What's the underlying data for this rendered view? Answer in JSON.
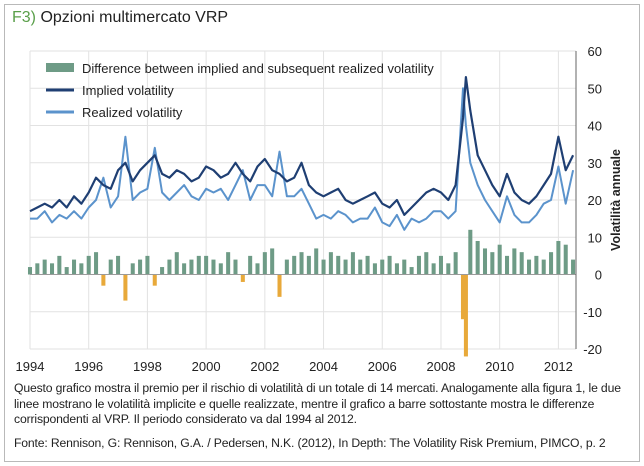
{
  "figure": {
    "label": "F3)",
    "title": "Opzioni multimercato VRP",
    "caption": "Questo grafico mostra il premio per il rischio di volatilità di un totale di 14 mercati. Analogamente alla figura 1, le due linee mostrano le volatilità implicite e quelle realizzate, mentre il grafico a barre sottostante mostra le differenze corrispondenti al VRP. Il periodo considerato va dal 1994 al 2012.",
    "source": "Fonte: Rennison, G: Rennison, G.A. / Pedersen, N.K. (2012), In Depth: The Volatility Risk Premium, PIMCO, p. 2"
  },
  "colors": {
    "implied": "#1f3f73",
    "realized": "#5b93cc",
    "diff_positive": "#6e9b86",
    "diff_negative": "#e8a93a",
    "grid": "#e2e2e2",
    "axis": "#222222"
  },
  "chart_data": {
    "type": "line",
    "xlabel": "",
    "ylabel": "Volatilità annuale",
    "xlim": [
      1994,
      2012.6
    ],
    "ylim": [
      -20,
      60
    ],
    "xticks": [
      1994,
      1996,
      1998,
      2000,
      2002,
      2004,
      2006,
      2008,
      2010,
      2012
    ],
    "yticks": [
      -20,
      -10,
      0,
      10,
      20,
      30,
      40,
      50,
      60
    ],
    "grid": true,
    "legend_position": "top-left",
    "x": [
      1994.0,
      1994.25,
      1994.5,
      1994.75,
      1995.0,
      1995.25,
      1995.5,
      1995.75,
      1996.0,
      1996.25,
      1996.5,
      1996.75,
      1997.0,
      1997.25,
      1997.5,
      1997.75,
      1998.0,
      1998.25,
      1998.5,
      1998.75,
      1999.0,
      1999.25,
      1999.5,
      1999.75,
      2000.0,
      2000.25,
      2000.5,
      2000.75,
      2001.0,
      2001.25,
      2001.5,
      2001.75,
      2002.0,
      2002.25,
      2002.5,
      2002.75,
      2003.0,
      2003.25,
      2003.5,
      2003.75,
      2004.0,
      2004.25,
      2004.5,
      2004.75,
      2005.0,
      2005.25,
      2005.5,
      2005.75,
      2006.0,
      2006.25,
      2006.5,
      2006.75,
      2007.0,
      2007.25,
      2007.5,
      2007.75,
      2008.0,
      2008.25,
      2008.5,
      2008.75,
      2008.85,
      2009.0,
      2009.25,
      2009.5,
      2009.75,
      2010.0,
      2010.25,
      2010.5,
      2010.75,
      2011.0,
      2011.25,
      2011.5,
      2011.75,
      2012.0,
      2012.25,
      2012.5
    ],
    "series": [
      {
        "name": "Difference between implied and subsequent realized volatility",
        "type": "bar",
        "values": [
          2,
          3,
          4,
          3,
          5,
          2,
          4,
          3,
          5,
          6,
          -3,
          4,
          5,
          -7,
          3,
          4,
          5,
          -3,
          2,
          4,
          6,
          3,
          4,
          5,
          5,
          4,
          3,
          6,
          4,
          -2,
          5,
          3,
          6,
          7,
          -6,
          4,
          5,
          6,
          5,
          7,
          4,
          6,
          5,
          4,
          6,
          4,
          5,
          3,
          4,
          5,
          3,
          4,
          2,
          5,
          6,
          3,
          5,
          3,
          6,
          -12,
          -22,
          12,
          9,
          7,
          6,
          8,
          5,
          7,
          6,
          4,
          5,
          4,
          6,
          9,
          8,
          4
        ]
      },
      {
        "name": "Implied volatility",
        "type": "line",
        "values": [
          17,
          18,
          19,
          18,
          20,
          18,
          21,
          19,
          22,
          26,
          24,
          23,
          28,
          30,
          25,
          28,
          30,
          32,
          27,
          26,
          28,
          27,
          25,
          26,
          29,
          28,
          26,
          27,
          30,
          27,
          25,
          29,
          31,
          28,
          27,
          25,
          26,
          30,
          24,
          22,
          21,
          22,
          23,
          20,
          19,
          20,
          21,
          22,
          19,
          18,
          20,
          16,
          18,
          20,
          22,
          23,
          22,
          20,
          24,
          42,
          53,
          44,
          32,
          28,
          24,
          21,
          27,
          22,
          20,
          19,
          21,
          24,
          27,
          37,
          28,
          32
        ]
      },
      {
        "name": "Realized volatility",
        "type": "line",
        "values": [
          15,
          15,
          17,
          14,
          16,
          15,
          17,
          15,
          18,
          20,
          26,
          18,
          21,
          37,
          20,
          22,
          23,
          34,
          22,
          20,
          22,
          24,
          21,
          20,
          23,
          22,
          23,
          20,
          24,
          28,
          20,
          24,
          24,
          21,
          33,
          21,
          21,
          23,
          19,
          15,
          16,
          15,
          17,
          16,
          14,
          15,
          15,
          18,
          14,
          13,
          16,
          12,
          15,
          14,
          15,
          17,
          17,
          15,
          17,
          50,
          40,
          30,
          24,
          20,
          17,
          14,
          21,
          16,
          14,
          14,
          16,
          19,
          20,
          29,
          19,
          28
        ]
      }
    ]
  }
}
